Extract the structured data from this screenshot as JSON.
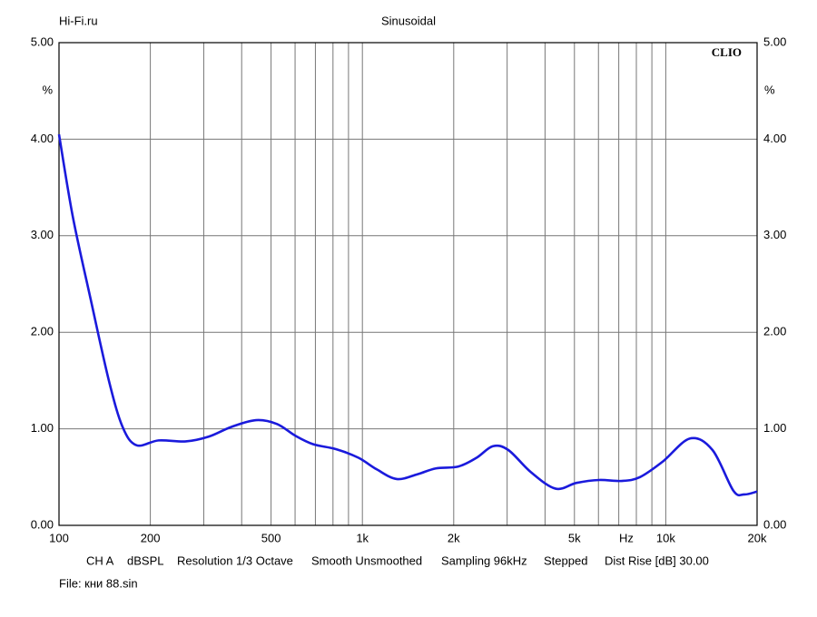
{
  "chart_data": {
    "type": "line",
    "header_left": "Hi-Fi.ru",
    "title": "Sinusoidal",
    "brand": "CLIO",
    "y_unit": "%",
    "x_unit": "Hz",
    "log_x": true,
    "xlim": [
      100,
      20000
    ],
    "xticks": [
      100,
      200,
      500,
      {
        "value": 1000,
        "label": "1k"
      },
      {
        "value": 2000,
        "label": "2k"
      },
      {
        "value": 5000,
        "label": "5k"
      },
      {
        "value": 10000,
        "label": "10k"
      },
      {
        "value": 20000,
        "label": "20k"
      }
    ],
    "xgrid": [
      200,
      300,
      400,
      500,
      600,
      700,
      800,
      900,
      1000,
      2000,
      3000,
      4000,
      5000,
      6000,
      7000,
      8000,
      9000,
      10000
    ],
    "ylim": [
      0,
      5
    ],
    "yticks": [
      {
        "value": 0,
        "label": "0.00"
      },
      {
        "value": 1,
        "label": "1.00"
      },
      {
        "value": 2,
        "label": "2.00"
      },
      {
        "value": 3,
        "label": "3.00"
      },
      {
        "value": 4,
        "label": "4.00"
      },
      {
        "value": 5,
        "label": "5.00"
      }
    ],
    "grid": true,
    "x": [
      100,
      111,
      127,
      146,
      162,
      180,
      213,
      262,
      312,
      370,
      446,
      523,
      600,
      689,
      818,
      971,
      1115,
      1298,
      1521,
      1746,
      2073,
      2379,
      2693,
      3028,
      3597,
      4335,
      5079,
      6030,
      7165,
      8224,
      9770,
      12022,
      14260,
      16700,
      18150,
      20000
    ],
    "series": [
      {
        "name": "CH A",
        "color": "#1a1adc",
        "values": [
          4.05,
          3.2,
          2.35,
          1.5,
          1.02,
          0.83,
          0.88,
          0.87,
          0.92,
          1.02,
          1.09,
          1.05,
          0.93,
          0.84,
          0.79,
          0.7,
          0.58,
          0.48,
          0.53,
          0.59,
          0.61,
          0.7,
          0.82,
          0.78,
          0.55,
          0.38,
          0.44,
          0.47,
          0.46,
          0.5,
          0.66,
          0.9,
          0.78,
          0.36,
          0.32,
          0.35
        ]
      }
    ],
    "footer": [
      "dBSPL",
      "Resolution 1/3 Octave",
      "Smooth Unsmoothed",
      "Sampling 96kHz",
      "Stepped",
      "Dist Rise [dB] 30.00"
    ],
    "file": "File: кни 88.sin"
  }
}
